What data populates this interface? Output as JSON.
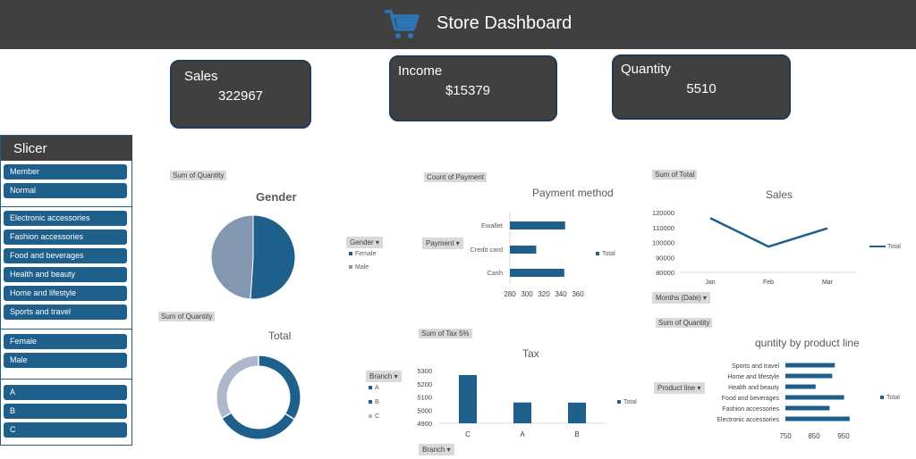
{
  "header": {
    "title": "Store Dashboard",
    "icon": "cart-icon",
    "icon_color": "#2e75b6"
  },
  "kpis": [
    {
      "label": "Sales",
      "value": "322967"
    },
    {
      "label": "Income",
      "value": "$15379"
    },
    {
      "label": "Quantity",
      "value": "5510"
    }
  ],
  "slicer": {
    "title": "Slicer",
    "groups": [
      [
        "Member",
        "Normal"
      ],
      [
        "Electronic accessories",
        "Fashion accessories",
        "Food and beverages",
        "Health and beauty",
        "Home and lifestyle",
        "Sports and travel"
      ],
      [
        "Female",
        "Male"
      ],
      [
        "A",
        "B",
        "C"
      ]
    ]
  },
  "colors": {
    "primary": "#1f5f8b",
    "secondary": "#8497b0",
    "light": "#adb9ca",
    "dark": "#404040"
  },
  "chips": {
    "gender": "Sum of Quantity",
    "total": "Sum of Quantity",
    "payment": "Count of Payment",
    "tax": "Sum of Tax 5%",
    "sales": "Sum of Total",
    "product": "Sum of Quantity"
  },
  "dropdowns": {
    "gender": "Gender",
    "branch_legend": "Branch",
    "payment": "Payment",
    "branch_axis": "Branch",
    "months": "Months (Date)",
    "product_line": "Product line"
  },
  "chart_data": [
    {
      "id": "gender",
      "type": "pie",
      "title": "Gender",
      "categories": [
        "Female",
        "Male"
      ],
      "values": [
        2811,
        2699
      ]
    },
    {
      "id": "total",
      "type": "pie",
      "title": "Total",
      "categories": [
        "A",
        "B",
        "C"
      ],
      "values": [
        1859,
        1820,
        1831
      ],
      "legend_title": "Branch"
    },
    {
      "id": "payment",
      "type": "bar",
      "orientation": "horizontal",
      "title": "Payment method",
      "categories": [
        "Ewallet",
        "Credit card",
        "Cash"
      ],
      "series": [
        {
          "name": "Total",
          "values": [
            345,
            311,
            344
          ]
        }
      ],
      "xlim": [
        280,
        360
      ],
      "xticks": [
        "280",
        "300",
        "320",
        "340",
        "360"
      ]
    },
    {
      "id": "sales",
      "type": "line",
      "title": "Sales",
      "x": [
        "Jan",
        "Feb",
        "Mar"
      ],
      "series": [
        {
          "name": "Total",
          "values": [
            116292,
            97219,
            109456
          ]
        }
      ],
      "ylim": [
        80000,
        120000
      ],
      "yticks": [
        "120000",
        "110000",
        "100000",
        "90000",
        "80000"
      ]
    },
    {
      "id": "tax",
      "type": "bar",
      "title": "Tax",
      "categories": [
        "C",
        "A",
        "B"
      ],
      "series": [
        {
          "name": "Total",
          "values": [
            5266,
            5058,
            5057
          ]
        }
      ],
      "ylim": [
        4900,
        5300
      ],
      "yticks": [
        "5300",
        "5200",
        "5100",
        "5000",
        "4900"
      ]
    },
    {
      "id": "product",
      "type": "bar",
      "orientation": "horizontal",
      "title": "quntity by product line",
      "categories": [
        "Sports and travel",
        "Home and lifestyle",
        "Health and beauty",
        "Food and beverages",
        "Fashion accessories",
        "Electronic accessories"
      ],
      "series": [
        {
          "name": "Total",
          "values": [
            920,
            911,
            854,
            952,
            902,
            971
          ]
        }
      ],
      "xlim": [
        750,
        1000
      ],
      "xticks": [
        "750",
        "850",
        "950"
      ]
    }
  ]
}
